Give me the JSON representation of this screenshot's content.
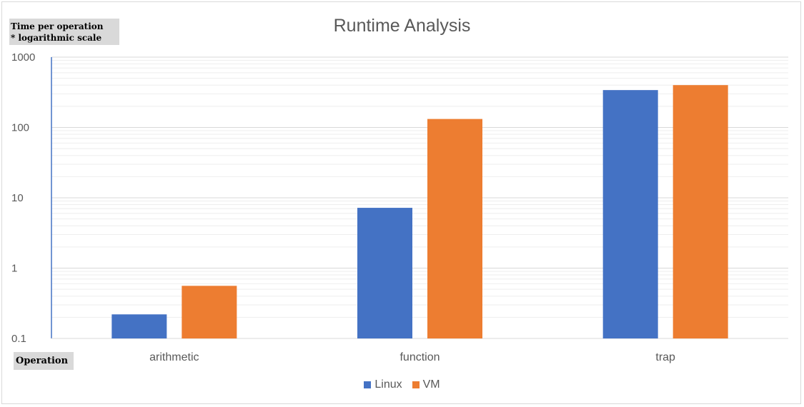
{
  "chart_data": {
    "type": "bar",
    "title": "Runtime Analysis",
    "ylabel": [
      "Time per operation",
      "* logarithmic scale"
    ],
    "xlabel": "Operation",
    "yscale": "log",
    "ylim": [
      0.1,
      1000
    ],
    "yticks": [
      "1000",
      "100",
      "10",
      "1",
      "0.1"
    ],
    "categories": [
      "arithmetic",
      "function",
      "trap"
    ],
    "series": [
      {
        "name": "Linux",
        "color": "#4472c4",
        "values": [
          0.22,
          7.2,
          340
        ]
      },
      {
        "name": "VM",
        "color": "#ed7d31",
        "values": [
          0.56,
          132,
          400
        ]
      }
    ],
    "grid": true,
    "legend_position": "bottom"
  }
}
